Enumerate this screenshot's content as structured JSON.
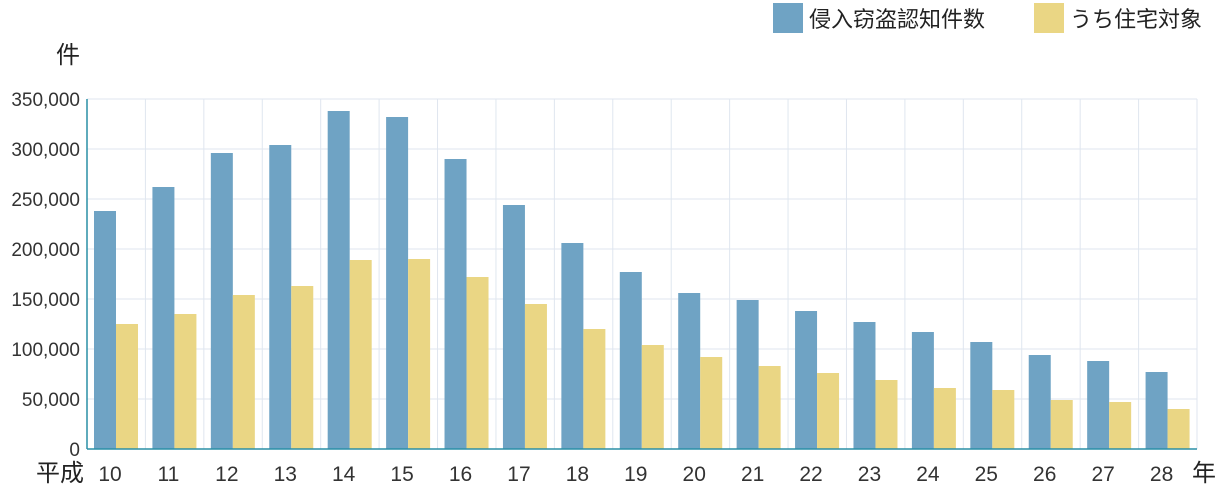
{
  "chart_data": {
    "type": "bar",
    "categories": [
      "10",
      "11",
      "12",
      "13",
      "14",
      "15",
      "16",
      "17",
      "18",
      "19",
      "20",
      "21",
      "22",
      "23",
      "24",
      "25",
      "26",
      "27",
      "28"
    ],
    "series": [
      {
        "name": "侵入窃盗認知件数",
        "color": "#6fa3c4",
        "values": [
          238000,
          262000,
          296000,
          304000,
          338000,
          332000,
          290000,
          244000,
          206000,
          177000,
          156000,
          149000,
          138000,
          127000,
          117000,
          107000,
          94000,
          88000,
          77000
        ]
      },
      {
        "name": "うち住宅対象",
        "color": "#ead684",
        "values": [
          125000,
          135000,
          154000,
          163000,
          189000,
          190000,
          172000,
          145000,
          120000,
          104000,
          92000,
          83000,
          76000,
          69000,
          61000,
          59000,
          49000,
          47000,
          40000
        ]
      }
    ],
    "ylim": [
      0,
      350000
    ],
    "yticks": [
      "0",
      "50,000",
      "100,000",
      "150,000",
      "200,000",
      "250,000",
      "300,000",
      "350,000"
    ],
    "ylabel": "件",
    "xlabel_prefix": "平成",
    "xlabel_suffix": "年",
    "grid": true,
    "legend_position": "top-right"
  }
}
